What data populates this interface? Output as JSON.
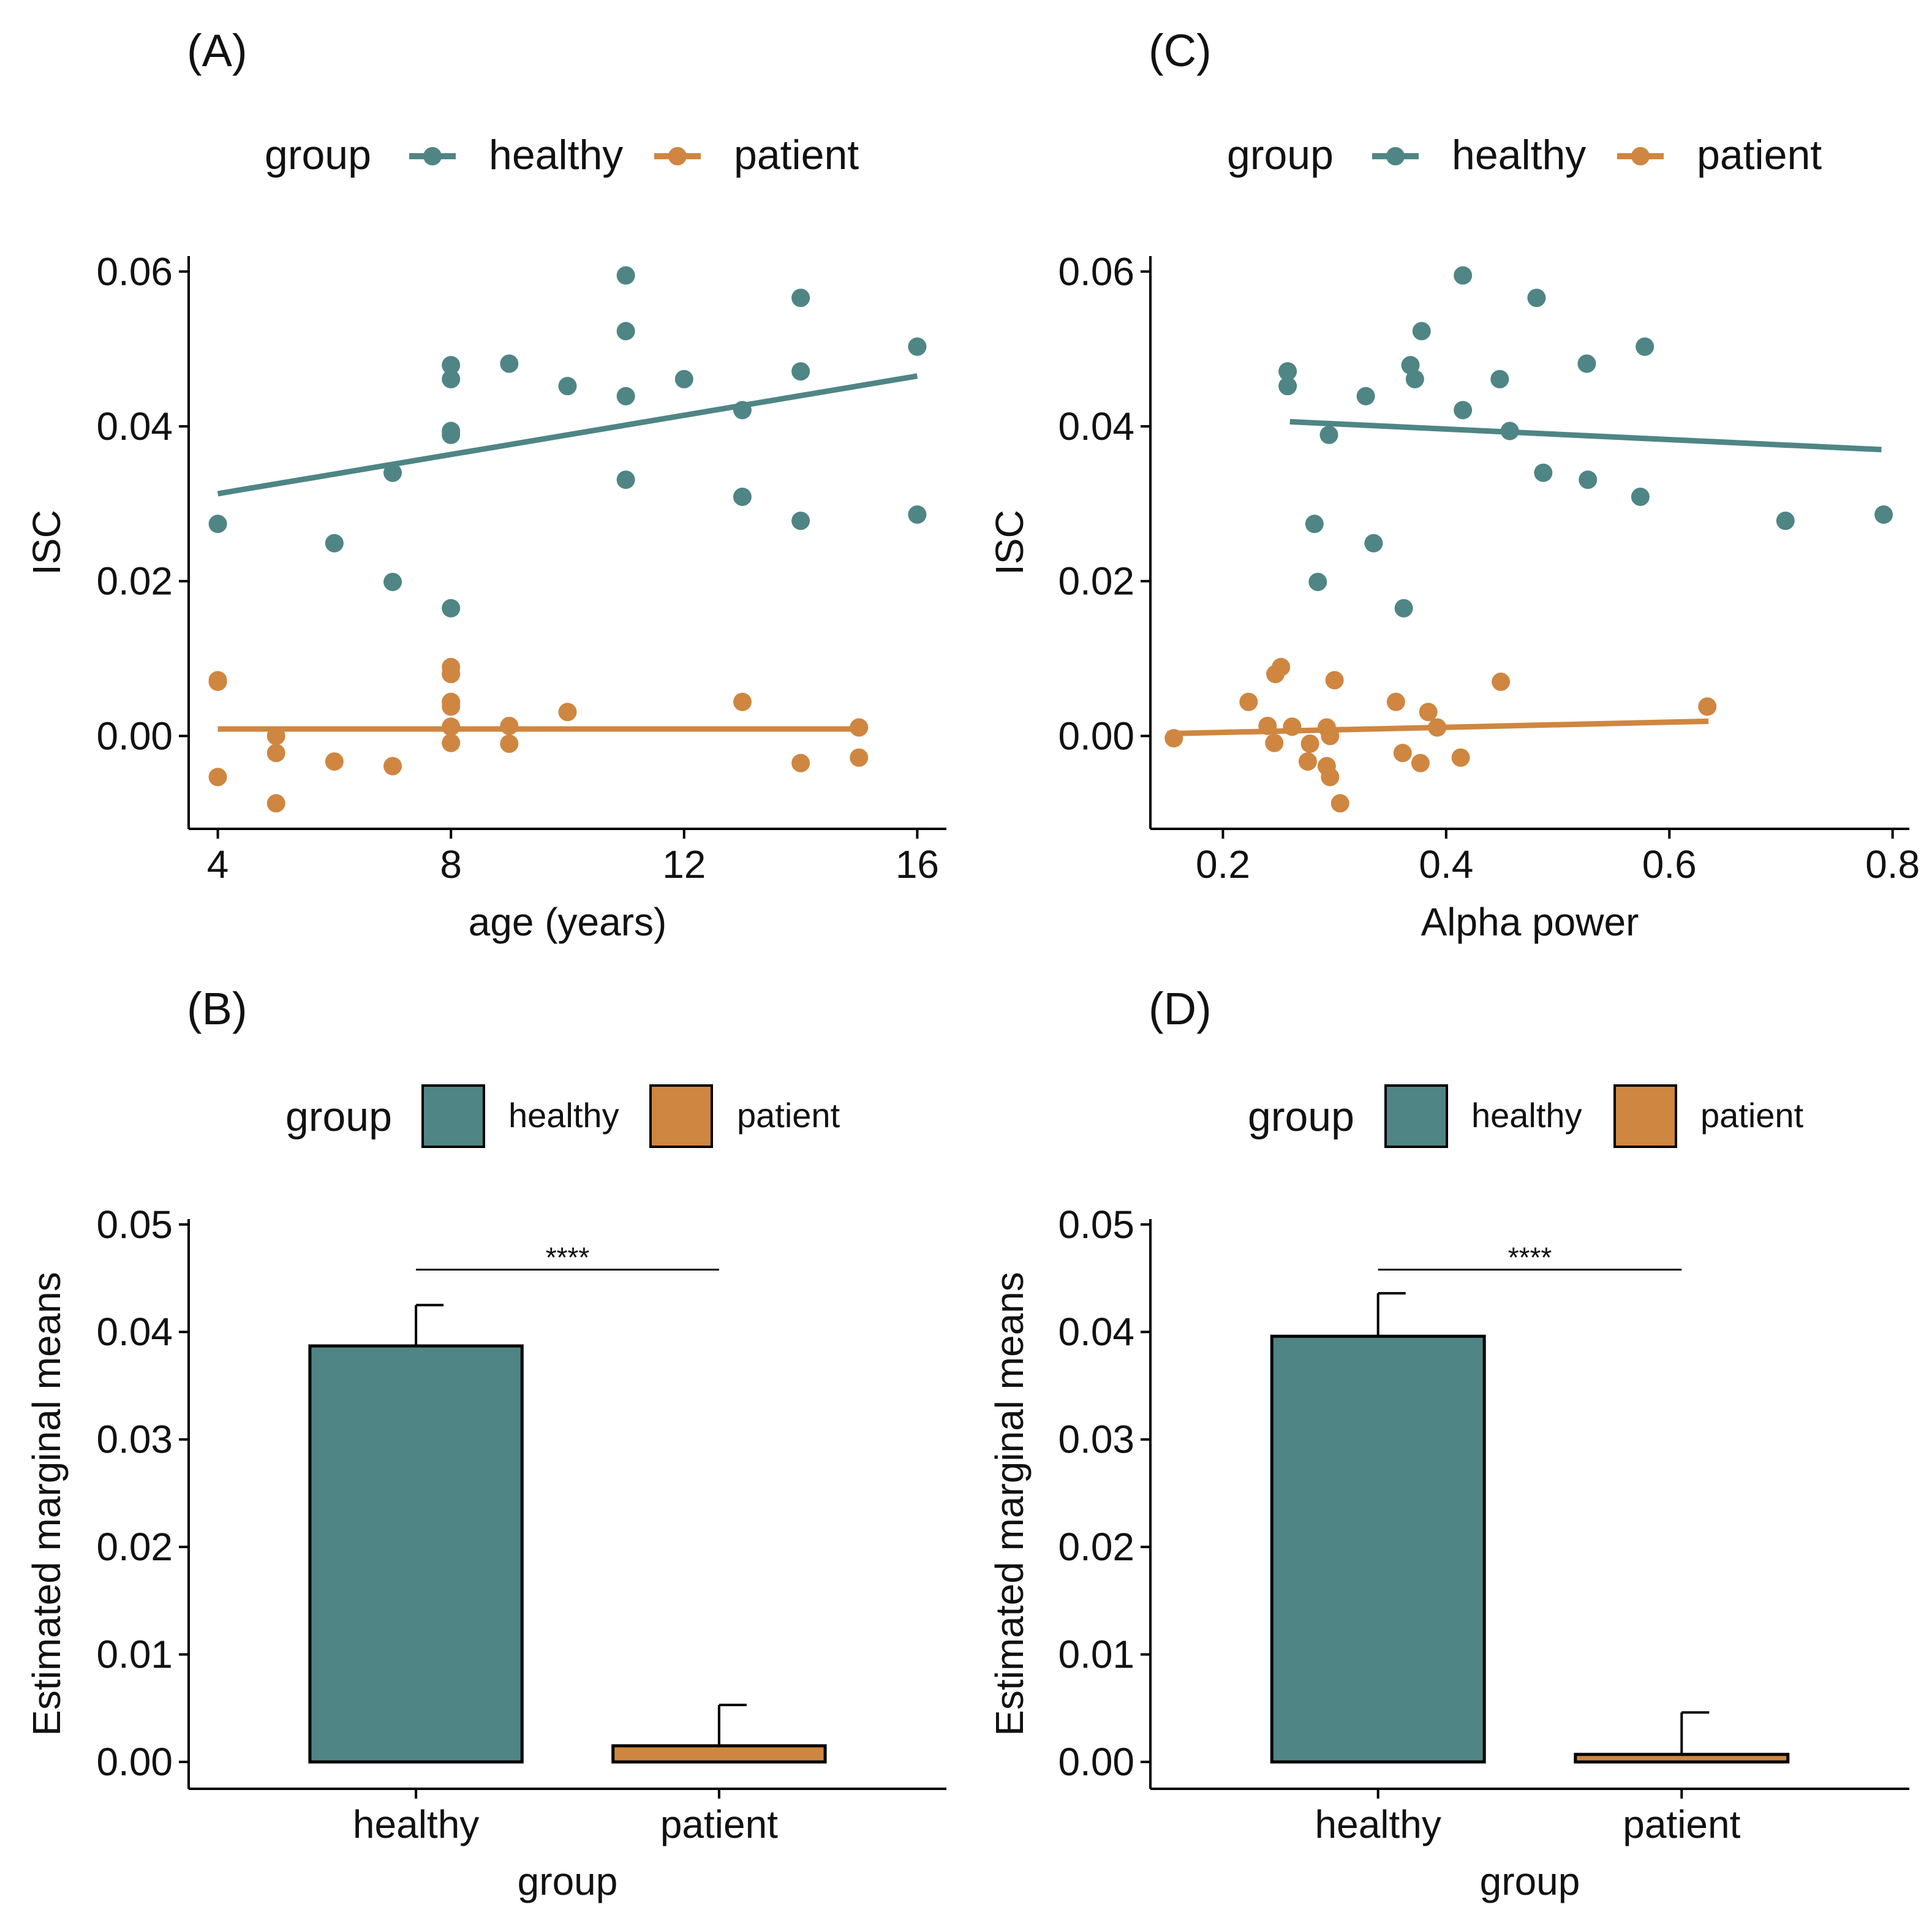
{
  "colors": {
    "healthy": "#4F8585",
    "patient": "#CF8640",
    "axis": "#000000"
  },
  "chart_data": [
    {
      "panel": "(A)",
      "type": "scatter",
      "legend": {
        "title": "group",
        "entries": [
          "healthy",
          "patient"
        ],
        "placement": "top",
        "key": "line-point"
      },
      "xlabel": "age (years)",
      "ylabel": "ISC",
      "xlim": [
        3.5,
        16.5
      ],
      "ylim": [
        -0.012,
        0.062
      ],
      "xticks": [
        4,
        8,
        12,
        16
      ],
      "xtick_labels": [
        "4",
        "8",
        "12",
        "16"
      ],
      "yticks": [
        0.0,
        0.02,
        0.04,
        0.06
      ],
      "ytick_labels": [
        "0.00",
        "0.02",
        "0.04",
        "0.06"
      ],
      "grid": false,
      "series": [
        {
          "name": "healthy",
          "points": [
            [
              4,
              0.0274
            ],
            [
              6,
              0.0249
            ],
            [
              7,
              0.034
            ],
            [
              7,
              0.0199
            ],
            [
              8,
              0.0479
            ],
            [
              8,
              0.0461
            ],
            [
              8,
              0.0394
            ],
            [
              8,
              0.0389
            ],
            [
              8,
              0.0165
            ],
            [
              9,
              0.0481
            ],
            [
              10,
              0.0452
            ],
            [
              11,
              0.0595
            ],
            [
              11,
              0.0523
            ],
            [
              11,
              0.0439
            ],
            [
              11,
              0.0331
            ],
            [
              12,
              0.0461
            ],
            [
              13,
              0.0421
            ],
            [
              13,
              0.0309
            ],
            [
              14,
              0.0566
            ],
            [
              14,
              0.0471
            ],
            [
              14,
              0.0278
            ],
            [
              16,
              0.0503
            ],
            [
              16,
              0.0286
            ]
          ],
          "fit": {
            "x": [
              4,
              16
            ],
            "y": [
              0.0313,
              0.0465
            ]
          }
        },
        {
          "name": "patient",
          "points": [
            [
              4,
              0.0072
            ],
            [
              4,
              0.007
            ],
            [
              4,
              -0.0053
            ],
            [
              5,
              0.0
            ],
            [
              5,
              -0.0022
            ],
            [
              5,
              -0.0087
            ],
            [
              6,
              -0.0033
            ],
            [
              7,
              -0.0039
            ],
            [
              8,
              0.0089
            ],
            [
              8,
              0.008
            ],
            [
              8,
              0.0044
            ],
            [
              8,
              0.0038
            ],
            [
              8,
              0.0012
            ],
            [
              8,
              -0.0009
            ],
            [
              9,
              0.0013
            ],
            [
              9,
              -0.001
            ],
            [
              10,
              0.0031
            ],
            [
              13,
              0.0044
            ],
            [
              14,
              -0.0035
            ],
            [
              15,
              0.0011
            ],
            [
              15,
              -0.0028
            ]
          ],
          "fit": {
            "x": [
              4,
              15
            ],
            "y": [
              0.0009,
              0.0009
            ]
          }
        }
      ]
    },
    {
      "panel": "(C)",
      "type": "scatter",
      "legend": {
        "title": "group",
        "entries": [
          "healthy",
          "patient"
        ],
        "placement": "top",
        "key": "line-point"
      },
      "xlabel": "Alpha power",
      "ylabel": "ISC",
      "xlim": [
        0.135,
        0.815
      ],
      "ylim": [
        -0.012,
        0.062
      ],
      "xticks": [
        0.2,
        0.4,
        0.6,
        0.8
      ],
      "xtick_labels": [
        "0.2",
        "0.4",
        "0.6",
        "0.8"
      ],
      "yticks": [
        0.0,
        0.02,
        0.04,
        0.06
      ],
      "ytick_labels": [
        "0.00",
        "0.02",
        "0.04",
        "0.06"
      ],
      "grid": false,
      "series": [
        {
          "name": "healthy",
          "points": [
            [
              0.258,
              0.0471
            ],
            [
              0.258,
              0.0452
            ],
            [
              0.282,
              0.0274
            ],
            [
              0.285,
              0.0199
            ],
            [
              0.295,
              0.0389
            ],
            [
              0.328,
              0.0439
            ],
            [
              0.335,
              0.0249
            ],
            [
              0.362,
              0.0165
            ],
            [
              0.368,
              0.0479
            ],
            [
              0.372,
              0.0461
            ],
            [
              0.378,
              0.0523
            ],
            [
              0.415,
              0.0595
            ],
            [
              0.415,
              0.0421
            ],
            [
              0.448,
              0.0461
            ],
            [
              0.457,
              0.0394
            ],
            [
              0.481,
              0.0566
            ],
            [
              0.487,
              0.034
            ],
            [
              0.526,
              0.0481
            ],
            [
              0.527,
              0.0331
            ],
            [
              0.574,
              0.0309
            ],
            [
              0.578,
              0.0503
            ],
            [
              0.704,
              0.0278
            ],
            [
              0.792,
              0.0286
            ]
          ],
          "fit": {
            "x": [
              0.26,
              0.79
            ],
            "y": [
              0.0406,
              0.037
            ]
          }
        },
        {
          "name": "patient",
          "points": [
            [
              0.156,
              -0.0003
            ],
            [
              0.223,
              0.0044
            ],
            [
              0.24,
              0.0013
            ],
            [
              0.246,
              -0.0009
            ],
            [
              0.247,
              0.008
            ],
            [
              0.252,
              0.0089
            ],
            [
              0.262,
              0.0012
            ],
            [
              0.276,
              -0.0033
            ],
            [
              0.278,
              -0.001
            ],
            [
              0.293,
              -0.0039
            ],
            [
              0.293,
              0.0011
            ],
            [
              0.296,
              0.0
            ],
            [
              0.296,
              -0.0053
            ],
            [
              0.3,
              0.0072
            ],
            [
              0.305,
              -0.0087
            ],
            [
              0.355,
              0.0044
            ],
            [
              0.361,
              -0.0022
            ],
            [
              0.377,
              -0.0035
            ],
            [
              0.384,
              0.0031
            ],
            [
              0.392,
              0.0011
            ],
            [
              0.413,
              -0.0028
            ],
            [
              0.449,
              0.007
            ],
            [
              0.634,
              0.0038
            ]
          ],
          "fit": {
            "x": [
              0.15,
              0.635
            ],
            "y": [
              0.0003,
              0.0019
            ]
          }
        }
      ]
    },
    {
      "panel": "(B)",
      "type": "bar",
      "legend": {
        "title": "group",
        "entries": [
          "healthy",
          "patient"
        ],
        "placement": "top",
        "key": "box"
      },
      "categories": [
        "healthy",
        "patient"
      ],
      "values": [
        0.0387,
        0.0015
      ],
      "error_upper": [
        0.0425,
        0.0053
      ],
      "xlabel": "group",
      "ylabel": "Estimated marginal means",
      "ylim": [
        -0.0025,
        0.0505
      ],
      "yticks": [
        0.0,
        0.01,
        0.02,
        0.03,
        0.04,
        0.05
      ],
      "ytick_labels": [
        "0.00",
        "0.01",
        "0.02",
        "0.03",
        "0.04",
        "0.05"
      ],
      "significance": {
        "label": "****",
        "between": [
          "healthy",
          "patient"
        ],
        "y": 0.0458
      },
      "grid": false
    },
    {
      "panel": "(D)",
      "type": "bar",
      "legend": {
        "title": "group",
        "entries": [
          "healthy",
          "patient"
        ],
        "placement": "top",
        "key": "box"
      },
      "categories": [
        "healthy",
        "patient"
      ],
      "values": [
        0.0396,
        0.0007
      ],
      "error_upper": [
        0.0436,
        0.0046
      ],
      "xlabel": "group",
      "ylabel": "Estimated marginal means",
      "ylim": [
        -0.0025,
        0.0505
      ],
      "yticks": [
        0.0,
        0.01,
        0.02,
        0.03,
        0.04,
        0.05
      ],
      "ytick_labels": [
        "0.00",
        "0.01",
        "0.02",
        "0.03",
        "0.04",
        "0.05"
      ],
      "significance": {
        "label": "****",
        "between": [
          "healthy",
          "patient"
        ],
        "y": 0.0458
      },
      "grid": false
    }
  ]
}
